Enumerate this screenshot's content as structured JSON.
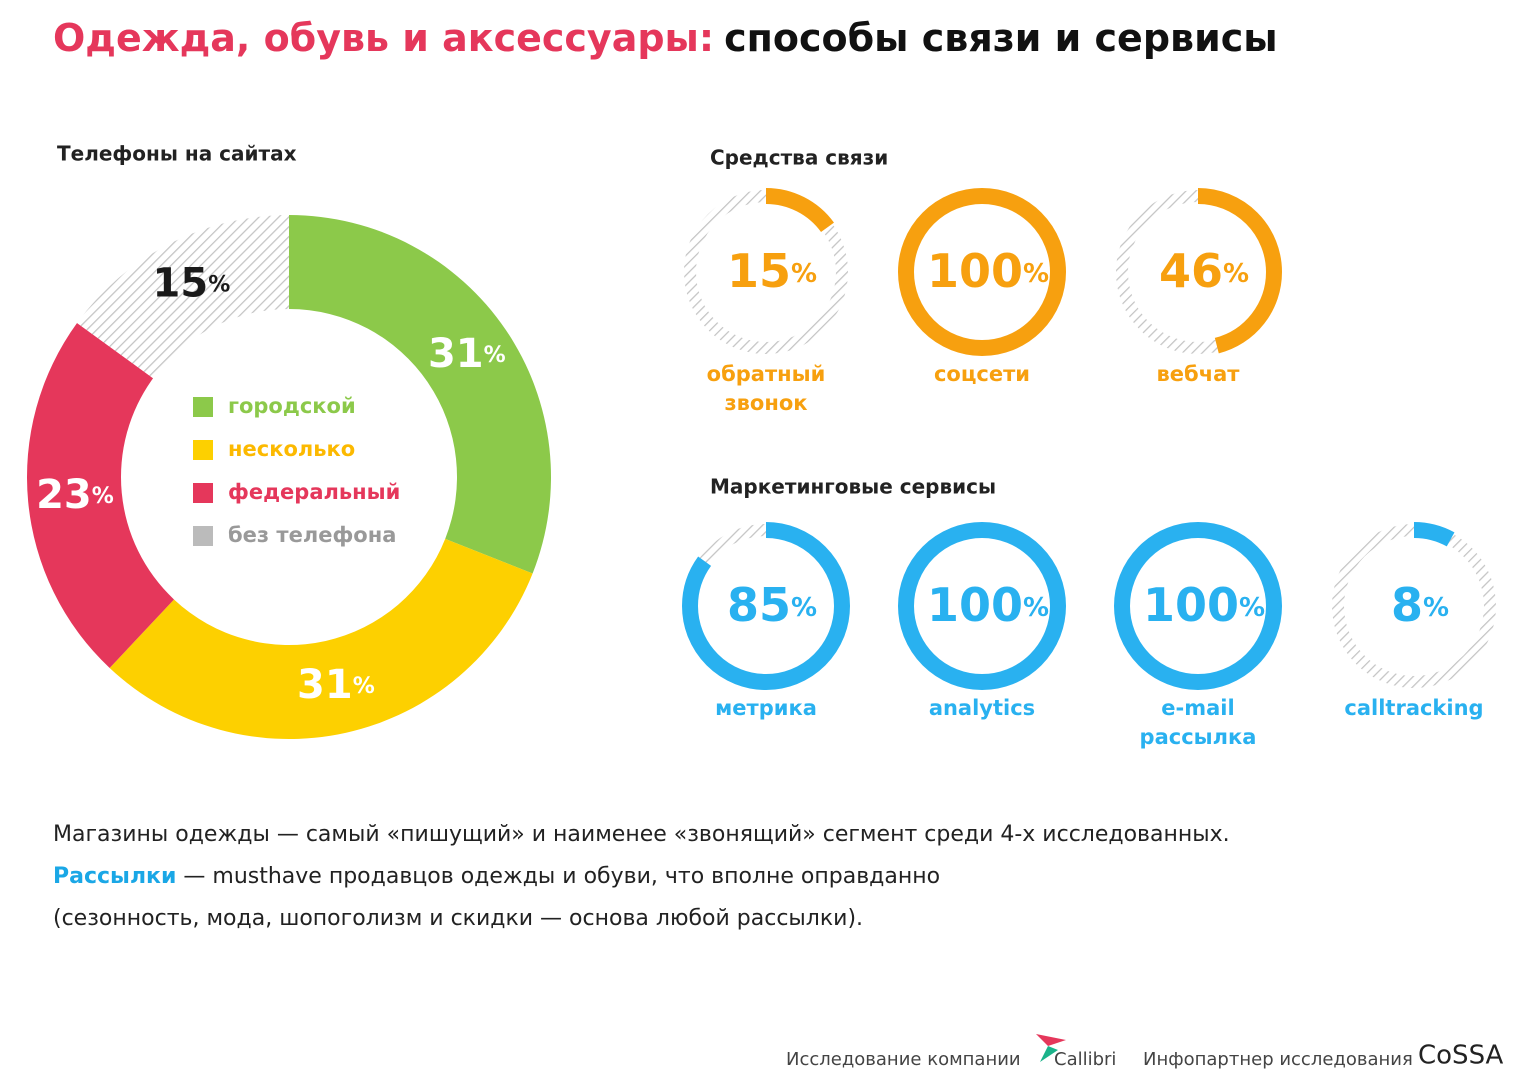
{
  "title_highlight": "Одежда, обувь и аксессуары:",
  "title": "способы связи и сервисы",
  "chart_data": [
    {
      "type": "donut",
      "title": "Телефоны на сайтах",
      "categories": [
        "городской",
        "несколько",
        "федеральный",
        "без телефона"
      ],
      "values": [
        31,
        31,
        23,
        15
      ],
      "value_labels": [
        "31%",
        "31%",
        "23%",
        "15%"
      ],
      "colors": [
        "#8cc94a",
        "#fdd000",
        "#e5375b",
        "#bbbbbb"
      ],
      "legend_text_colors": [
        "#8cc94a",
        "#fcb900",
        "#e5375b",
        "#999999"
      ],
      "label_colors": [
        "#ffffff",
        "#ffffff",
        "#ffffff",
        "#1a1a1a"
      ],
      "hatched": [
        false,
        false,
        false,
        true
      ]
    },
    {
      "type": "gauge",
      "title": "Средства связи",
      "categories": [
        "обратный звонок",
        "соцсети",
        "вебчат"
      ],
      "values": [
        15,
        100,
        46
      ],
      "value_labels": [
        "15%",
        "100%",
        "46%"
      ],
      "color": "#f7a00f",
      "ylim": [
        0,
        100
      ]
    },
    {
      "type": "gauge",
      "title": "Маркетинговые сервисы",
      "categories": [
        "метрика",
        "analytics",
        "e-mail рассылка",
        "calltracking"
      ],
      "values": [
        85,
        100,
        100,
        8
      ],
      "value_labels": [
        "85%",
        "100%",
        "100%",
        "8%"
      ],
      "color": "#29b1f0",
      "ylim": [
        0,
        100
      ]
    }
  ],
  "text": {
    "line1": "Магазины одежды — самый «пишущий» и наименее «звонящий» сегмент среди 4-х исследованных.",
    "line2_highlight": "Рассылки",
    "line2": " — musthave продавцов одежды и обуви, что вполне оправданно",
    "line3": "(сезонность, мода, шопоголизм и скидки — основа любой рассылки)."
  },
  "footer": {
    "research": "Исследование компании",
    "company": "Callibri",
    "partner": "Инфопартнер исследования",
    "partner_logo": "CoSSA"
  }
}
